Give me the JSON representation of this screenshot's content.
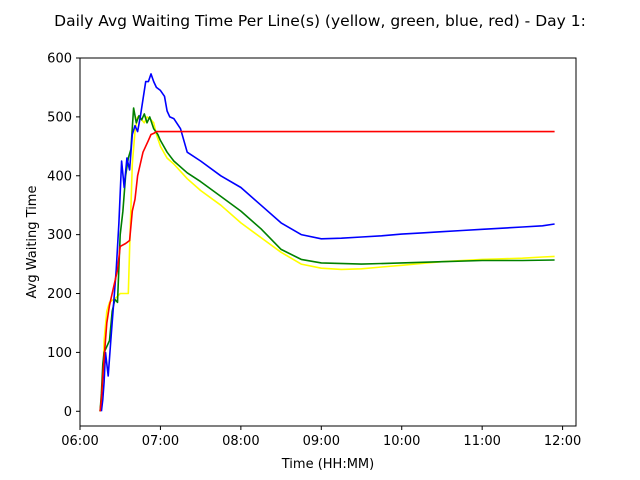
{
  "chart_data": {
    "type": "line",
    "title": "Daily Avg Waiting Time Per Line(s) (yellow, green, blue, red) - Day 1:",
    "xlabel": "Time (HH:MM)",
    "ylabel": "Avg Waiting Time",
    "xlim": [
      "06:00",
      "12:10"
    ],
    "ylim": [
      -25,
      600
    ],
    "x_ticks": [
      "06:00",
      "07:00",
      "08:00",
      "09:00",
      "10:00",
      "11:00",
      "12:00"
    ],
    "y_ticks": [
      0,
      100,
      200,
      300,
      400,
      500,
      600
    ],
    "grid": false,
    "legend": false,
    "series": [
      {
        "color": "#ffff00",
        "points": [
          [
            "06:15",
            0
          ],
          [
            "06:16",
            20
          ],
          [
            "06:17",
            50
          ],
          [
            "06:18",
            120
          ],
          [
            "06:20",
            170
          ],
          [
            "06:22",
            185
          ],
          [
            "06:25",
            190
          ],
          [
            "06:28",
            195
          ],
          [
            "06:30",
            200
          ],
          [
            "06:33",
            200
          ],
          [
            "06:36",
            200
          ],
          [
            "06:37",
            275
          ],
          [
            "06:39",
            420
          ],
          [
            "06:41",
            475
          ],
          [
            "06:43",
            500
          ],
          [
            "06:46",
            495
          ],
          [
            "06:48",
            490
          ],
          [
            "06:50",
            500
          ],
          [
            "06:53",
            495
          ],
          [
            "06:55",
            490
          ],
          [
            "06:57",
            470
          ],
          [
            "07:00",
            450
          ],
          [
            "07:05",
            430
          ],
          [
            "07:10",
            420
          ],
          [
            "07:20",
            395
          ],
          [
            "07:30",
            375
          ],
          [
            "07:45",
            350
          ],
          [
            "08:00",
            320
          ],
          [
            "08:15",
            295
          ],
          [
            "08:30",
            270
          ],
          [
            "08:45",
            250
          ],
          [
            "09:00",
            243
          ],
          [
            "09:15",
            241
          ],
          [
            "09:30",
            242
          ],
          [
            "09:45",
            245
          ],
          [
            "10:00",
            248
          ],
          [
            "10:15",
            251
          ],
          [
            "10:30",
            254
          ],
          [
            "10:45",
            256
          ],
          [
            "11:00",
            258
          ],
          [
            "11:15",
            259
          ],
          [
            "11:30",
            260
          ],
          [
            "11:45",
            262
          ],
          [
            "11:54",
            263
          ]
        ]
      },
      {
        "color": "#008000",
        "points": [
          [
            "06:15",
            0
          ],
          [
            "06:16",
            30
          ],
          [
            "06:17",
            80
          ],
          [
            "06:18",
            100
          ],
          [
            "06:20",
            110
          ],
          [
            "06:22",
            120
          ],
          [
            "06:24",
            170
          ],
          [
            "06:26",
            190
          ],
          [
            "06:28",
            185
          ],
          [
            "06:30",
            300
          ],
          [
            "06:32",
            340
          ],
          [
            "06:34",
            400
          ],
          [
            "06:36",
            430
          ],
          [
            "06:38",
            445
          ],
          [
            "06:40",
            515
          ],
          [
            "06:42",
            490
          ],
          [
            "06:44",
            502
          ],
          [
            "06:46",
            495
          ],
          [
            "06:48",
            505
          ],
          [
            "06:50",
            490
          ],
          [
            "06:52",
            500
          ],
          [
            "06:55",
            480
          ],
          [
            "06:58",
            470
          ],
          [
            "07:00",
            460
          ],
          [
            "07:05",
            440
          ],
          [
            "07:10",
            425
          ],
          [
            "07:20",
            405
          ],
          [
            "07:30",
            390
          ],
          [
            "07:45",
            365
          ],
          [
            "08:00",
            340
          ],
          [
            "08:15",
            310
          ],
          [
            "08:30",
            275
          ],
          [
            "08:45",
            258
          ],
          [
            "09:00",
            252
          ],
          [
            "09:30",
            250
          ],
          [
            "10:00",
            252
          ],
          [
            "10:30",
            254
          ],
          [
            "11:00",
            256
          ],
          [
            "11:30",
            256
          ],
          [
            "11:54",
            257
          ]
        ]
      },
      {
        "color": "#0000ff",
        "points": [
          [
            "06:16",
            0
          ],
          [
            "06:17",
            20
          ],
          [
            "06:18",
            50
          ],
          [
            "06:19",
            100
          ],
          [
            "06:21",
            60
          ],
          [
            "06:23",
            120
          ],
          [
            "06:25",
            180
          ],
          [
            "06:27",
            240
          ],
          [
            "06:29",
            320
          ],
          [
            "06:31",
            425
          ],
          [
            "06:33",
            380
          ],
          [
            "06:35",
            430
          ],
          [
            "06:37",
            410
          ],
          [
            "06:39",
            470
          ],
          [
            "06:41",
            485
          ],
          [
            "06:43",
            475
          ],
          [
            "06:45",
            500
          ],
          [
            "06:47",
            530
          ],
          [
            "06:49",
            560
          ],
          [
            "06:51",
            560
          ],
          [
            "06:53",
            573
          ],
          [
            "06:55",
            560
          ],
          [
            "06:57",
            550
          ],
          [
            "07:00",
            545
          ],
          [
            "07:03",
            535
          ],
          [
            "07:05",
            510
          ],
          [
            "07:07",
            500
          ],
          [
            "07:10",
            497
          ],
          [
            "07:15",
            480
          ],
          [
            "07:20",
            440
          ],
          [
            "07:30",
            425
          ],
          [
            "07:45",
            400
          ],
          [
            "08:00",
            380
          ],
          [
            "08:15",
            350
          ],
          [
            "08:30",
            320
          ],
          [
            "08:45",
            300
          ],
          [
            "09:00",
            293
          ],
          [
            "09:15",
            294
          ],
          [
            "09:30",
            296
          ],
          [
            "09:45",
            298
          ],
          [
            "10:00",
            301
          ],
          [
            "10:15",
            303
          ],
          [
            "10:30",
            305
          ],
          [
            "10:45",
            307
          ],
          [
            "11:00",
            309
          ],
          [
            "11:15",
            311
          ],
          [
            "11:30",
            313
          ],
          [
            "11:45",
            315
          ],
          [
            "11:54",
            318
          ]
        ]
      },
      {
        "color": "#ff0000",
        "points": [
          [
            "06:15",
            0
          ],
          [
            "06:16",
            20
          ],
          [
            "06:17",
            60
          ],
          [
            "06:18",
            90
          ],
          [
            "06:20",
            150
          ],
          [
            "06:22",
            180
          ],
          [
            "06:25",
            210
          ],
          [
            "06:28",
            240
          ],
          [
            "06:30",
            280
          ],
          [
            "06:34",
            285
          ],
          [
            "06:37",
            290
          ],
          [
            "06:39",
            340
          ],
          [
            "06:41",
            360
          ],
          [
            "06:43",
            400
          ],
          [
            "06:45",
            420
          ],
          [
            "06:47",
            440
          ],
          [
            "06:49",
            450
          ],
          [
            "06:51",
            460
          ],
          [
            "06:53",
            470
          ],
          [
            "06:55",
            472
          ],
          [
            "06:57",
            475
          ],
          [
            "07:00",
            475
          ],
          [
            "08:00",
            475
          ],
          [
            "09:00",
            475
          ],
          [
            "10:00",
            475
          ],
          [
            "11:00",
            475
          ],
          [
            "11:54",
            475
          ]
        ]
      }
    ]
  }
}
